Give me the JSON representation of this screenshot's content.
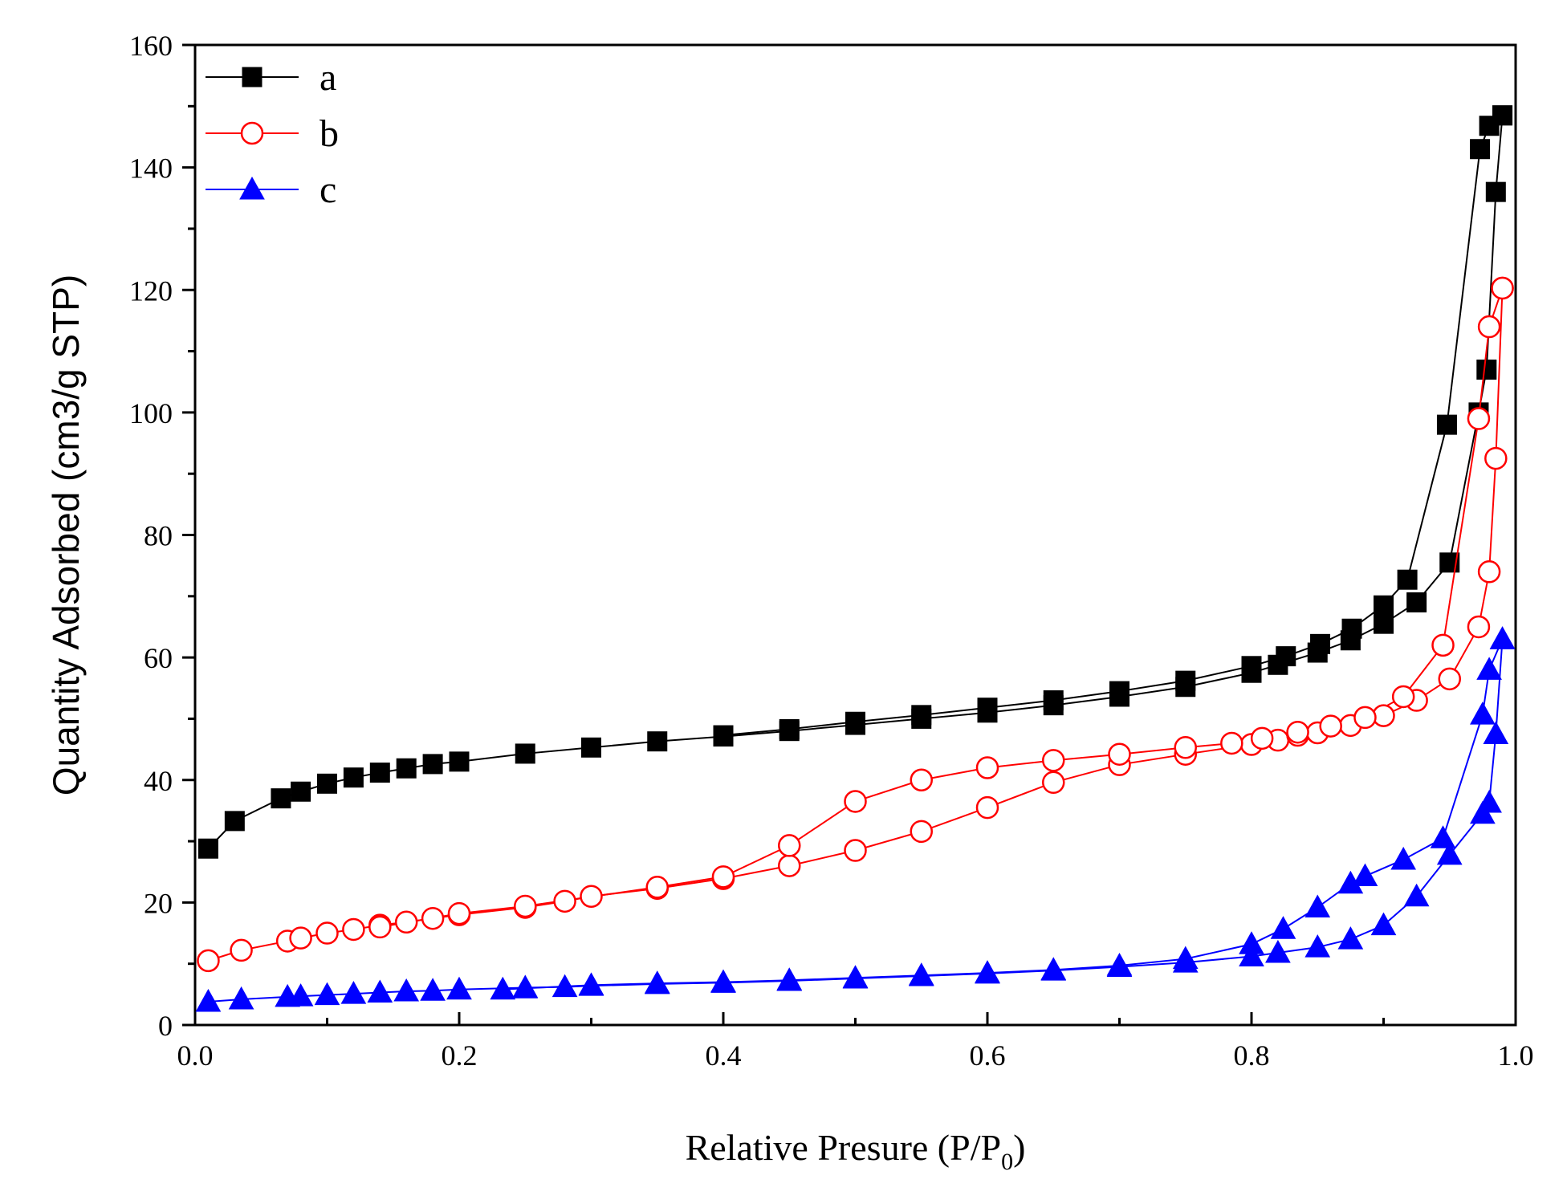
{
  "chart_data": {
    "type": "line",
    "xlabel": "Relative Presure (P/P",
    "xlabel_sub": "0",
    "xlabel_suffix": ")",
    "ylabel": "Quantity Adsorbed (cm3/g STP)",
    "xlim": [
      0,
      1.0
    ],
    "ylim": [
      0,
      160
    ],
    "x_ticks": [
      0.0,
      0.2,
      0.4,
      0.6,
      0.8,
      1.0
    ],
    "x_tick_labels": [
      "0.0",
      "0.2",
      "0.4",
      "0.6",
      "0.8",
      "1.0"
    ],
    "y_ticks": [
      0,
      20,
      40,
      60,
      80,
      100,
      120,
      140,
      160
    ],
    "y_tick_labels": [
      "0",
      "20",
      "40",
      "60",
      "80",
      "100",
      "120",
      "140",
      "160"
    ],
    "legend_position": "top-left",
    "series": [
      {
        "name": "a",
        "color": "#000000",
        "marker": "filled-square",
        "adsorption": [
          [
            0.01,
            28.8
          ],
          [
            0.03,
            33.3
          ],
          [
            0.065,
            37.0
          ],
          [
            0.08,
            38.1
          ],
          [
            0.1,
            39.4
          ],
          [
            0.12,
            40.4
          ],
          [
            0.14,
            41.2
          ],
          [
            0.16,
            41.9
          ],
          [
            0.18,
            42.6
          ],
          [
            0.2,
            43.0
          ],
          [
            0.25,
            44.3
          ],
          [
            0.3,
            45.3
          ],
          [
            0.35,
            46.3
          ],
          [
            0.4,
            47.1
          ],
          [
            0.45,
            48.0
          ],
          [
            0.5,
            49.0
          ],
          [
            0.55,
            50.0
          ],
          [
            0.6,
            51.0
          ],
          [
            0.65,
            52.2
          ],
          [
            0.7,
            53.6
          ],
          [
            0.75,
            55.2
          ],
          [
            0.8,
            57.5
          ],
          [
            0.82,
            58.8
          ],
          [
            0.85,
            60.8
          ],
          [
            0.875,
            62.8
          ],
          [
            0.9,
            65.5
          ],
          [
            0.925,
            69.0
          ],
          [
            0.95,
            75.5
          ],
          [
            0.972,
            100.0
          ],
          [
            0.978,
            107.0
          ],
          [
            0.985,
            136.0
          ],
          [
            0.99,
            148.5
          ]
        ],
        "desorption": [
          [
            0.99,
            148.5
          ],
          [
            0.98,
            146.8
          ],
          [
            0.973,
            143.0
          ],
          [
            0.948,
            98.0
          ],
          [
            0.918,
            72.7
          ],
          [
            0.9,
            68.5
          ],
          [
            0.876,
            64.7
          ],
          [
            0.852,
            62.2
          ],
          [
            0.826,
            60.2
          ],
          [
            0.8,
            58.6
          ],
          [
            0.75,
            56.2
          ],
          [
            0.7,
            54.5
          ],
          [
            0.65,
            53.0
          ],
          [
            0.6,
            51.8
          ],
          [
            0.55,
            50.6
          ],
          [
            0.5,
            49.5
          ],
          [
            0.45,
            48.3
          ],
          [
            0.4,
            47.3
          ]
        ]
      },
      {
        "name": "b",
        "color": "#ff0000",
        "marker": "open-circle",
        "adsorption": [
          [
            0.01,
            10.5
          ],
          [
            0.035,
            12.2
          ],
          [
            0.07,
            13.7
          ],
          [
            0.08,
            14.2
          ],
          [
            0.1,
            15.0
          ],
          [
            0.12,
            15.6
          ],
          [
            0.14,
            16.3
          ],
          [
            0.16,
            16.8
          ],
          [
            0.18,
            17.4
          ],
          [
            0.2,
            18.0
          ],
          [
            0.25,
            19.2
          ],
          [
            0.28,
            20.2
          ],
          [
            0.3,
            21.0
          ],
          [
            0.35,
            22.3
          ],
          [
            0.4,
            23.9
          ],
          [
            0.45,
            26.0
          ],
          [
            0.5,
            28.5
          ],
          [
            0.55,
            31.6
          ],
          [
            0.6,
            35.5
          ],
          [
            0.65,
            39.6
          ],
          [
            0.7,
            42.5
          ],
          [
            0.75,
            44.2
          ],
          [
            0.8,
            45.8
          ],
          [
            0.82,
            46.5
          ],
          [
            0.835,
            47.3
          ],
          [
            0.85,
            47.7
          ],
          [
            0.875,
            48.9
          ],
          [
            0.9,
            50.5
          ],
          [
            0.925,
            53.0
          ],
          [
            0.95,
            56.5
          ],
          [
            0.972,
            65.0
          ],
          [
            0.98,
            74.0
          ],
          [
            0.985,
            92.5
          ],
          [
            0.99,
            120.3
          ]
        ],
        "desorption": [
          [
            0.99,
            120.3
          ],
          [
            0.98,
            114.0
          ],
          [
            0.972,
            99.0
          ],
          [
            0.945,
            62.0
          ],
          [
            0.915,
            53.6
          ],
          [
            0.886,
            50.2
          ],
          [
            0.86,
            48.8
          ],
          [
            0.835,
            47.8
          ],
          [
            0.808,
            46.8
          ],
          [
            0.785,
            46.0
          ],
          [
            0.75,
            45.3
          ],
          [
            0.7,
            44.2
          ],
          [
            0.65,
            43.2
          ],
          [
            0.6,
            42.0
          ],
          [
            0.55,
            40.0
          ],
          [
            0.5,
            36.5
          ],
          [
            0.45,
            29.3
          ],
          [
            0.4,
            24.2
          ],
          [
            0.35,
            22.5
          ],
          [
            0.25,
            19.4
          ],
          [
            0.2,
            18.2
          ],
          [
            0.14,
            16.0
          ]
        ]
      },
      {
        "name": "c",
        "color": "#0000ff",
        "marker": "filled-triangle",
        "adsorption": [
          [
            0.01,
            3.8
          ],
          [
            0.035,
            4.2
          ],
          [
            0.07,
            4.6
          ],
          [
            0.08,
            4.7
          ],
          [
            0.1,
            4.9
          ],
          [
            0.12,
            5.1
          ],
          [
            0.14,
            5.3
          ],
          [
            0.16,
            5.5
          ],
          [
            0.18,
            5.6
          ],
          [
            0.2,
            5.8
          ],
          [
            0.25,
            6.1
          ],
          [
            0.28,
            6.2
          ],
          [
            0.3,
            6.4
          ],
          [
            0.35,
            6.7
          ],
          [
            0.4,
            6.9
          ],
          [
            0.45,
            7.2
          ],
          [
            0.5,
            7.6
          ],
          [
            0.55,
            8.0
          ],
          [
            0.6,
            8.4
          ],
          [
            0.65,
            8.9
          ],
          [
            0.7,
            9.5
          ],
          [
            0.75,
            10.2
          ],
          [
            0.8,
            11.2
          ],
          [
            0.82,
            11.8
          ],
          [
            0.85,
            12.7
          ],
          [
            0.875,
            14.0
          ],
          [
            0.9,
            16.3
          ],
          [
            0.925,
            21.0
          ],
          [
            0.95,
            27.8
          ],
          [
            0.975,
            34.5
          ],
          [
            0.98,
            36.3
          ],
          [
            0.985,
            47.5
          ],
          [
            0.99,
            63.0
          ]
        ],
        "desorption": [
          [
            0.99,
            63.0
          ],
          [
            0.98,
            58.0
          ],
          [
            0.975,
            50.7
          ],
          [
            0.945,
            30.5
          ],
          [
            0.915,
            27.0
          ],
          [
            0.886,
            24.3
          ],
          [
            0.875,
            23.1
          ],
          [
            0.85,
            19.2
          ],
          [
            0.824,
            15.7
          ],
          [
            0.8,
            13.2
          ],
          [
            0.75,
            10.8
          ],
          [
            0.7,
            9.7
          ],
          [
            0.65,
            9.0
          ],
          [
            0.6,
            8.5
          ],
          [
            0.55,
            8.1
          ],
          [
            0.5,
            7.7
          ],
          [
            0.45,
            7.3
          ],
          [
            0.4,
            7.0
          ],
          [
            0.35,
            6.8
          ],
          [
            0.3,
            6.5
          ],
          [
            0.25,
            6.0
          ],
          [
            0.233,
            5.8
          ]
        ]
      }
    ]
  }
}
